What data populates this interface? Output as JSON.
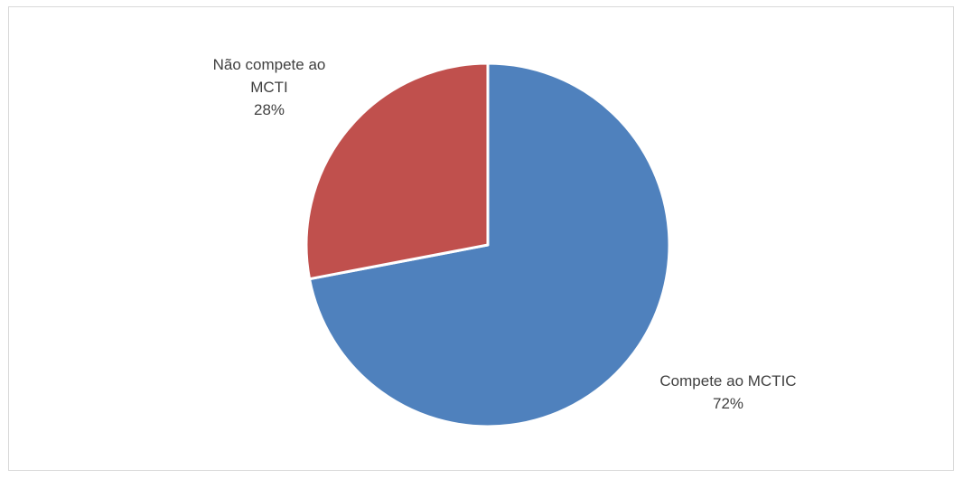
{
  "chart_data": {
    "type": "pie",
    "title": "",
    "slices": [
      {
        "label_lines": [
          "Compete ao MCTIC"
        ],
        "percent_label": "72%",
        "value": 72,
        "color": "#4f81bd"
      },
      {
        "label_lines": [
          "Não compete ao",
          "MCTI"
        ],
        "percent_label": "28%",
        "value": 28,
        "color": "#c0504d"
      }
    ],
    "start_angle_deg": 0,
    "direction": "clockwise",
    "legend": "none"
  }
}
